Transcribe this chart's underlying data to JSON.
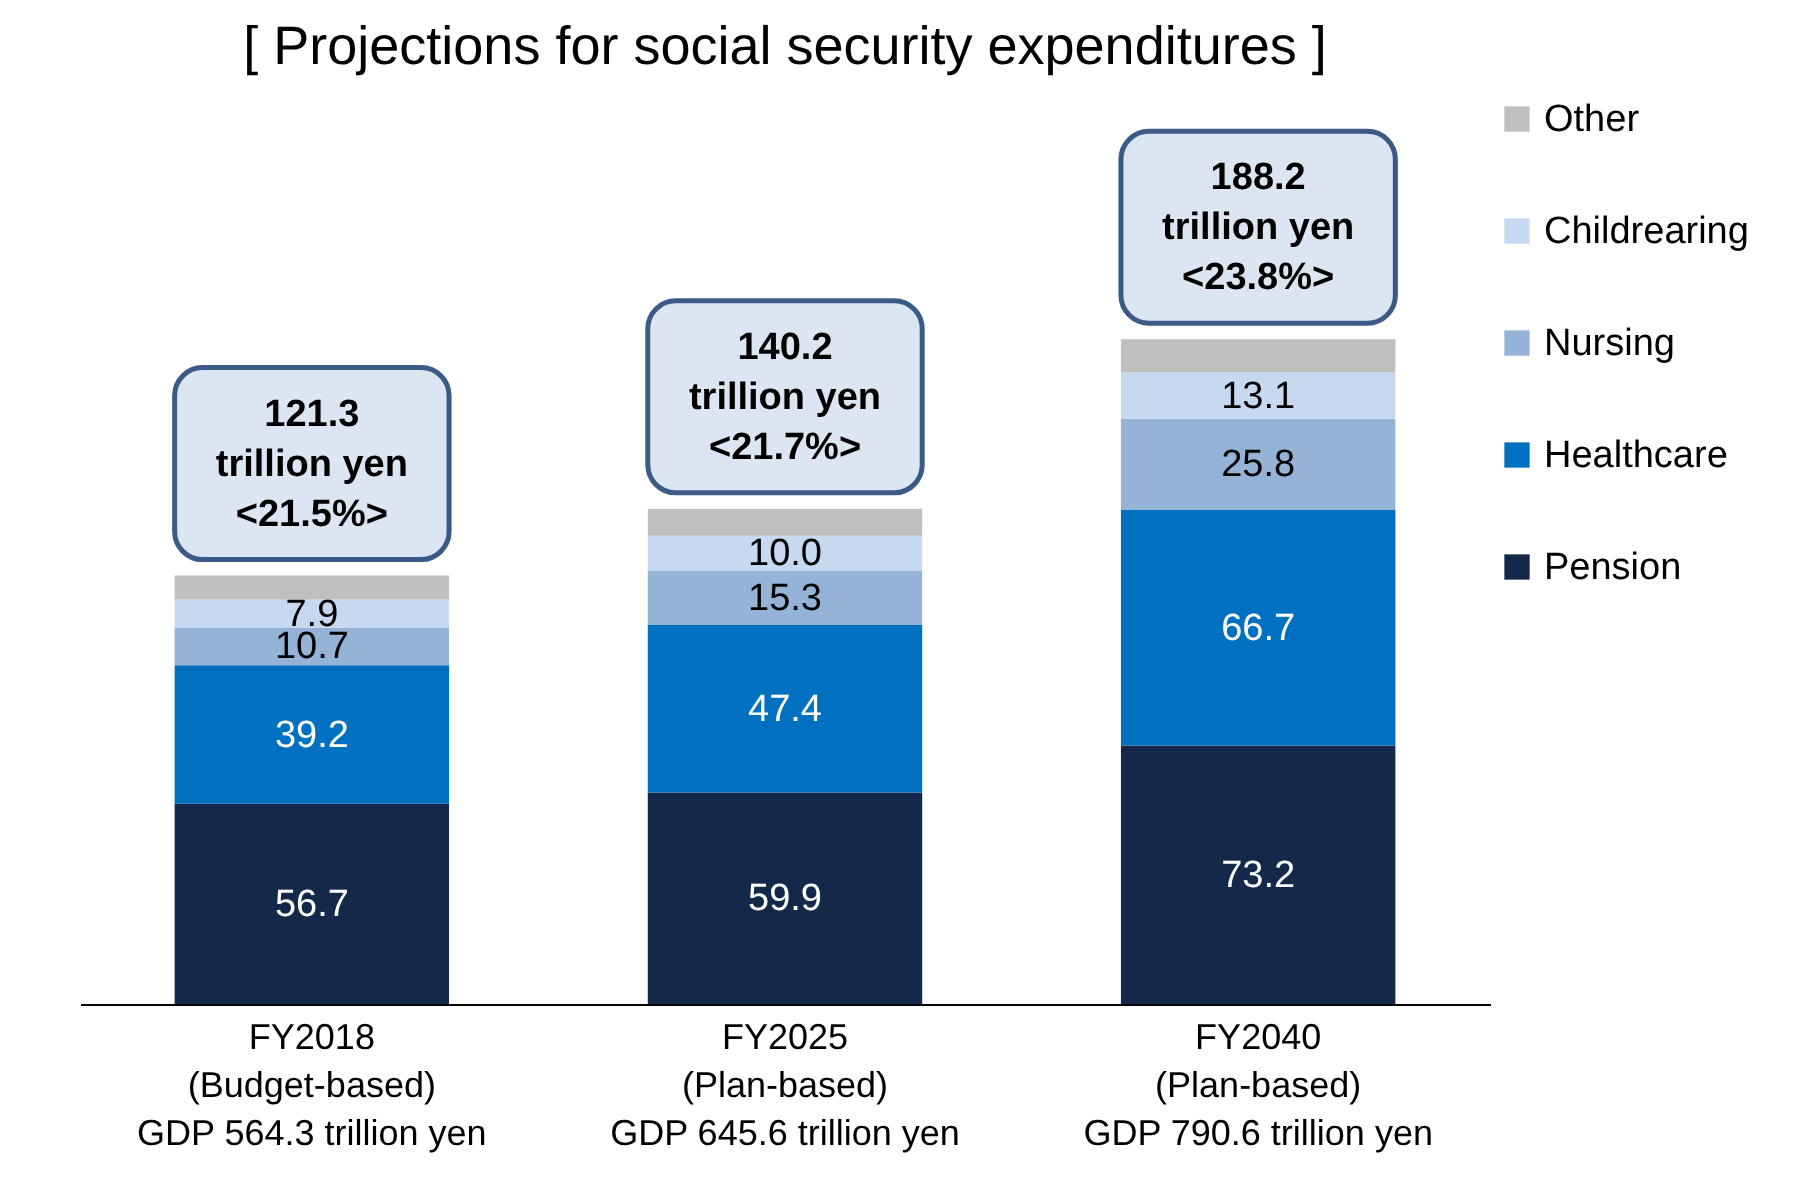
{
  "chart_data": {
    "type": "bar",
    "title": "[ Projections for social security expenditures ]",
    "categories": [
      "FY2018\n(Budget-based)\nGDP 564.3 trillion yen",
      "FY2025\n(Plan-based)\nGDP 645.6 trillion yen",
      "FY2040\n(Plan-based)\nGDP 790.6 trillion yen"
    ],
    "stacked": true,
    "legend": "right",
    "series": [
      {
        "name": "Pension",
        "color": "#14294a",
        "values": [
          56.7,
          59.9,
          73.2
        ],
        "value_labels": [
          "56.7",
          "59.9",
          "73.2"
        ]
      },
      {
        "name": "Healthcare",
        "color": "#0070c0",
        "values": [
          39.2,
          47.4,
          66.7
        ],
        "value_labels": [
          "39.2",
          "47.4",
          "66.7"
        ]
      },
      {
        "name": "Nursing",
        "color": "#95b3d7",
        "values": [
          10.7,
          15.3,
          25.8
        ],
        "value_labels": [
          "10.7",
          "15.3",
          "25.8"
        ]
      },
      {
        "name": "Childrearing",
        "color": "#c6d9f1",
        "values": [
          7.9,
          10.0,
          13.1
        ],
        "value_labels": [
          "7.9",
          "10.0",
          "13.1"
        ]
      },
      {
        "name": "Other",
        "color": "#bfbfbf",
        "values": [
          6.8,
          7.6,
          9.4
        ],
        "value_labels": [
          null,
          null,
          null
        ]
      }
    ],
    "totals": [
      "121.3\ntrillion yen\n<21.5%>",
      "140.2\ntrillion yen\n<21.7%>",
      "188.2\ntrillion yen\n<23.8%>"
    ]
  }
}
